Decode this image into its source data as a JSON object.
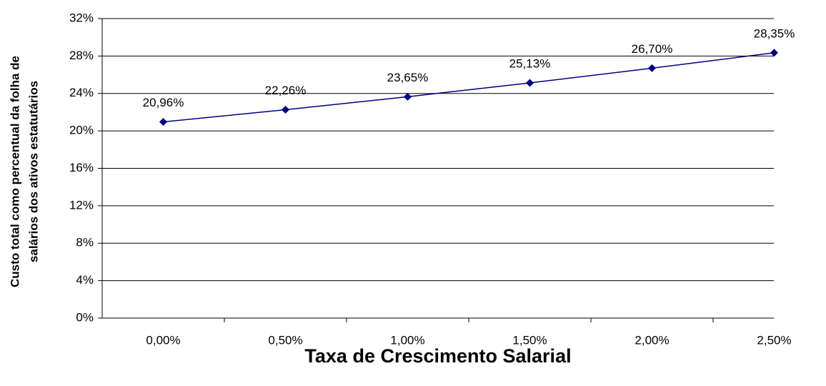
{
  "chart_data": {
    "type": "line",
    "x_label": "Taxa de Crescimento Salarial",
    "y_label": [
      "Custo total como percentual da folha de",
      "salários dos ativos estatutários"
    ],
    "categories": [
      "0,00%",
      "0,50%",
      "1,00%",
      "1,50%",
      "2,00%",
      "2,50%"
    ],
    "series": [
      {
        "color": "#000080",
        "values": [
          20.96,
          22.26,
          23.65,
          25.13,
          26.7,
          28.35
        ],
        "value_labels": [
          "20,96%",
          "22,26%",
          "23,65%",
          "25,13%",
          "26,70%",
          "28,35%"
        ]
      }
    ],
    "ylim": [
      0,
      32
    ],
    "yticks": [
      {
        "value": 0,
        "label": "0%"
      },
      {
        "value": 4,
        "label": "4%"
      },
      {
        "value": 8,
        "label": "8%"
      },
      {
        "value": 12,
        "label": "12%"
      },
      {
        "value": 16,
        "label": "16%"
      },
      {
        "value": 20,
        "label": "20%"
      },
      {
        "value": 24,
        "label": "24%"
      },
      {
        "value": 28,
        "label": "28%"
      },
      {
        "value": 32,
        "label": "32%"
      }
    ],
    "grid": true
  }
}
